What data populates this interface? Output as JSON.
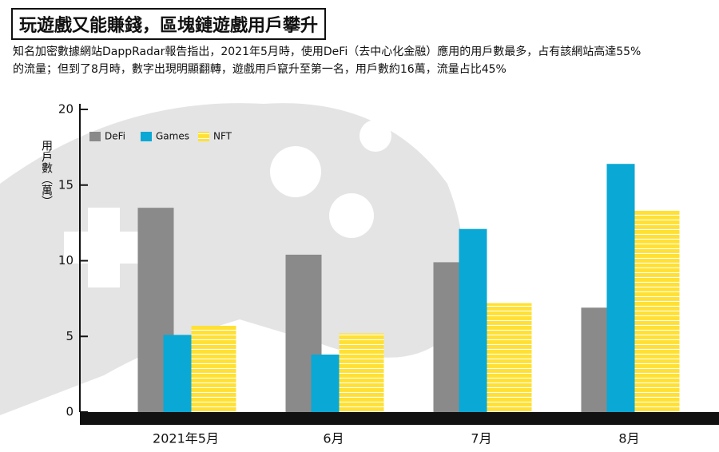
{
  "chart_data": {
    "type": "bar",
    "title": "玩遊戲又能賺錢，區塊鏈遊戲用戶攀升",
    "subtitle": "知名加密數據網站DappRadar報告指出，2021年5月時，使用DeFi（去中心化金融）應用的用戶數最多，占有該網站高達55%的流量；但到了8月時，數字出現明顯翻轉，遊戲用戶竄升至第一名，用戶數約16萬，流量占比45%",
    "y_label": "用戶數（萬）",
    "categories": [
      "2021年5月",
      "6月",
      "7月",
      "8月"
    ],
    "series": [
      {
        "name": "DeFi",
        "color": "#8a8a8a",
        "values": [
          13.5,
          10.4,
          9.9,
          6.9
        ]
      },
      {
        "name": "Games",
        "color": "#0aa8d4",
        "values": [
          5.1,
          3.8,
          12.1,
          16.4
        ]
      },
      {
        "name": "NFT",
        "color": "#ffe033",
        "values": [
          5.7,
          5.2,
          7.2,
          13.3
        ]
      }
    ],
    "ylim": [
      0,
      20
    ],
    "yticks": [
      0,
      5,
      10,
      15,
      20
    ]
  }
}
